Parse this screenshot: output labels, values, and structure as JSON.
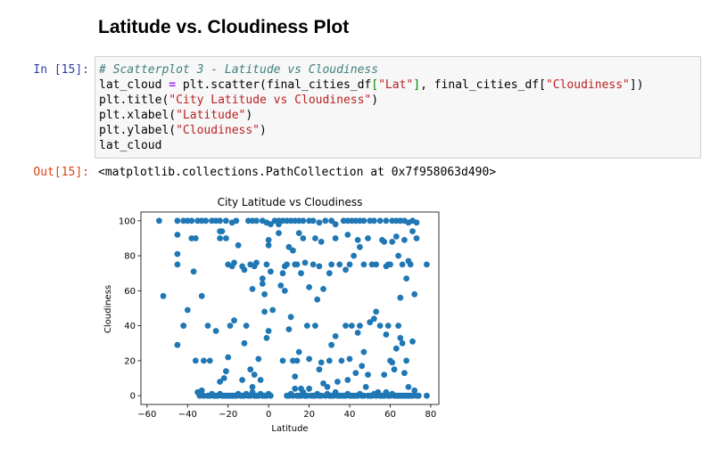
{
  "notebook": {
    "heading": "Latitude vs. Cloudiness Plot",
    "in_prompt": "In [15]:",
    "out_prompt": "Out[15]:",
    "code": {
      "line1_comment": "# Scatterplot 3 - Latitude vs Cloudiness",
      "line2": {
        "a": "lat_cloud ",
        "op": "=",
        "b": " plt.scatter(final_cities_df",
        "br1": "[",
        "s1": "\"Lat\"",
        "br2": "]",
        "c": ", final_cities_df[",
        "s2": "\"Cloudiness\"",
        "d": "])"
      },
      "line3": {
        "a": "plt.title(",
        "s": "\"City Latitude vs Cloudiness\"",
        "b": ")"
      },
      "line4": {
        "a": "plt.xlabel(",
        "s": "\"Latitude\"",
        "b": ")"
      },
      "line5": {
        "a": "plt.ylabel(",
        "s": "\"Cloudiness\"",
        "b": ")"
      },
      "line6": "lat_cloud"
    },
    "output": "<matplotlib.collections.PathCollection at 0x7f958063d490>"
  },
  "colors": {
    "marker": "#1f77b4",
    "in_prompt": "#303f9f",
    "out_prompt": "#d84315"
  },
  "chart_data": {
    "type": "scatter",
    "title": "City Latitude vs Cloudiness",
    "xlabel": "Latitude",
    "ylabel": "Cloudiness",
    "xlim": [
      -63,
      84
    ],
    "ylim": [
      -5,
      105
    ],
    "xticks": [
      -60,
      -40,
      -20,
      0,
      20,
      40,
      60,
      80
    ],
    "yticks": [
      0,
      20,
      40,
      60,
      80,
      100
    ],
    "xtick_labels": [
      "−60",
      "−40",
      "−20",
      "0",
      "20",
      "40",
      "60",
      "80"
    ],
    "ytick_labels": [
      "0",
      "20",
      "40",
      "60",
      "80",
      "100"
    ],
    "grid": false,
    "points": [
      [
        -54,
        100
      ],
      [
        -45,
        100
      ],
      [
        -42,
        100
      ],
      [
        -40,
        100
      ],
      [
        -38,
        100
      ],
      [
        -35,
        100
      ],
      [
        -33,
        100
      ],
      [
        -31,
        100
      ],
      [
        -28,
        100
      ],
      [
        -26,
        100
      ],
      [
        -24,
        100
      ],
      [
        -21,
        100
      ],
      [
        -18,
        99
      ],
      [
        -16,
        100
      ],
      [
        -10,
        100
      ],
      [
        -8,
        100
      ],
      [
        -6,
        100
      ],
      [
        -3,
        100
      ],
      [
        -1,
        99
      ],
      [
        1,
        98
      ],
      [
        3,
        100
      ],
      [
        5,
        100
      ],
      [
        7,
        100
      ],
      [
        9,
        100
      ],
      [
        11,
        100
      ],
      [
        13,
        100
      ],
      [
        15,
        100
      ],
      [
        17,
        100
      ],
      [
        20,
        100
      ],
      [
        22,
        100
      ],
      [
        25,
        99
      ],
      [
        28,
        100
      ],
      [
        31,
        100
      ],
      [
        33,
        98
      ],
      [
        37,
        100
      ],
      [
        39,
        100
      ],
      [
        41,
        100
      ],
      [
        43,
        100
      ],
      [
        45,
        100
      ],
      [
        47,
        100
      ],
      [
        50,
        100
      ],
      [
        52,
        100
      ],
      [
        55,
        100
      ],
      [
        58,
        100
      ],
      [
        61,
        100
      ],
      [
        63,
        100
      ],
      [
        65,
        100
      ],
      [
        67,
        100
      ],
      [
        69,
        99
      ],
      [
        71,
        100
      ],
      [
        73,
        99
      ],
      [
        -52,
        57
      ],
      [
        -45,
        92
      ],
      [
        -45,
        81
      ],
      [
        -45,
        75
      ],
      [
        -42,
        40
      ],
      [
        -40,
        49
      ],
      [
        -38,
        90
      ],
      [
        -37,
        71
      ],
      [
        -36,
        90
      ],
      [
        -33,
        57
      ],
      [
        -24,
        94
      ],
      [
        -24,
        90
      ],
      [
        -23,
        94
      ],
      [
        -21,
        90
      ],
      [
        -20,
        75
      ],
      [
        -18,
        74
      ],
      [
        -17,
        76
      ],
      [
        -15,
        86
      ],
      [
        -13,
        74
      ],
      [
        -12,
        72
      ],
      [
        -9,
        75
      ],
      [
        -8,
        61
      ],
      [
        -7,
        74
      ],
      [
        -6,
        76
      ],
      [
        -3,
        67
      ],
      [
        -3,
        64
      ],
      [
        -2,
        58
      ],
      [
        -2,
        48
      ],
      [
        -1,
        75
      ],
      [
        0,
        86
      ],
      [
        0,
        89
      ],
      [
        1,
        71
      ],
      [
        2,
        49
      ],
      [
        5,
        98
      ],
      [
        5,
        93
      ],
      [
        6,
        63
      ],
      [
        7,
        70
      ],
      [
        8,
        74
      ],
      [
        8,
        60
      ],
      [
        9,
        75
      ],
      [
        10,
        85
      ],
      [
        12,
        83
      ],
      [
        13,
        75
      ],
      [
        14,
        75
      ],
      [
        15,
        93
      ],
      [
        16,
        70
      ],
      [
        17,
        90
      ],
      [
        18,
        76
      ],
      [
        20,
        62
      ],
      [
        22,
        75
      ],
      [
        23,
        90
      ],
      [
        24,
        55
      ],
      [
        25,
        74
      ],
      [
        26,
        88
      ],
      [
        27,
        61
      ],
      [
        30,
        70
      ],
      [
        31,
        75
      ],
      [
        33,
        90
      ],
      [
        35,
        75
      ],
      [
        38,
        72
      ],
      [
        39,
        92
      ],
      [
        40,
        75
      ],
      [
        42,
        80
      ],
      [
        44,
        89
      ],
      [
        45,
        85
      ],
      [
        47,
        75
      ],
      [
        49,
        90
      ],
      [
        51,
        75
      ],
      [
        53,
        75
      ],
      [
        56,
        89
      ],
      [
        57,
        88
      ],
      [
        58,
        74
      ],
      [
        59,
        75
      ],
      [
        60,
        75
      ],
      [
        61,
        88
      ],
      [
        63,
        91
      ],
      [
        64,
        80
      ],
      [
        65,
        56
      ],
      [
        66,
        75
      ],
      [
        67,
        89
      ],
      [
        68,
        67
      ],
      [
        69,
        77
      ],
      [
        70,
        75
      ],
      [
        71,
        94
      ],
      [
        72,
        58
      ],
      [
        73,
        90
      ],
      [
        78,
        75
      ],
      [
        -45,
        29
      ],
      [
        -42,
        40
      ],
      [
        -36,
        20
      ],
      [
        -34,
        1
      ],
      [
        -32,
        20
      ],
      [
        -30,
        40
      ],
      [
        -29,
        20
      ],
      [
        -27,
        0
      ],
      [
        -26,
        37
      ],
      [
        -24,
        8
      ],
      [
        -22,
        10
      ],
      [
        -21,
        14
      ],
      [
        -20,
        22
      ],
      [
        -19,
        40
      ],
      [
        -17,
        43
      ],
      [
        -16,
        0
      ],
      [
        -13,
        9
      ],
      [
        -12,
        30
      ],
      [
        -11,
        40
      ],
      [
        -9,
        15
      ],
      [
        -8,
        5
      ],
      [
        -7,
        12
      ],
      [
        -5,
        21
      ],
      [
        -4,
        9
      ],
      [
        -3,
        0
      ],
      [
        -1,
        33
      ],
      [
        0,
        37
      ],
      [
        7,
        20
      ],
      [
        9,
        0
      ],
      [
        10,
        38
      ],
      [
        11,
        45
      ],
      [
        12,
        20
      ],
      [
        13,
        11
      ],
      [
        14,
        20
      ],
      [
        15,
        25
      ],
      [
        16,
        4
      ],
      [
        18,
        0
      ],
      [
        19,
        40
      ],
      [
        20,
        21
      ],
      [
        22,
        0
      ],
      [
        23,
        40
      ],
      [
        25,
        15
      ],
      [
        26,
        19
      ],
      [
        27,
        7
      ],
      [
        29,
        5
      ],
      [
        30,
        20
      ],
      [
        31,
        29
      ],
      [
        33,
        34
      ],
      [
        34,
        8
      ],
      [
        36,
        20
      ],
      [
        37,
        0
      ],
      [
        38,
        40
      ],
      [
        39,
        9
      ],
      [
        40,
        21
      ],
      [
        41,
        40
      ],
      [
        43,
        13
      ],
      [
        44,
        36
      ],
      [
        45,
        40
      ],
      [
        46,
        17
      ],
      [
        47,
        25
      ],
      [
        48,
        5
      ],
      [
        49,
        12
      ],
      [
        50,
        42
      ],
      [
        52,
        44
      ],
      [
        53,
        48
      ],
      [
        54,
        2
      ],
      [
        55,
        40
      ],
      [
        57,
        12
      ],
      [
        58,
        35
      ],
      [
        59,
        40
      ],
      [
        60,
        20
      ],
      [
        61,
        19
      ],
      [
        62,
        15
      ],
      [
        63,
        27
      ],
      [
        64,
        40
      ],
      [
        65,
        33
      ],
      [
        66,
        30
      ],
      [
        67,
        13
      ],
      [
        68,
        20
      ],
      [
        69,
        5
      ],
      [
        70,
        0
      ],
      [
        71,
        31
      ],
      [
        72,
        3
      ],
      [
        74,
        0
      ],
      [
        78,
        0
      ],
      [
        -35,
        2
      ],
      [
        -34,
        0
      ],
      [
        -33,
        3
      ],
      [
        -32,
        0
      ],
      [
        -30,
        0
      ],
      [
        -29,
        0
      ],
      [
        -28,
        1
      ],
      [
        -27,
        0
      ],
      [
        -26,
        0
      ],
      [
        -25,
        0
      ],
      [
        -24,
        1
      ],
      [
        -23,
        0
      ],
      [
        -22,
        0
      ],
      [
        -21,
        0
      ],
      [
        -20,
        0
      ],
      [
        -19,
        0
      ],
      [
        -18,
        0
      ],
      [
        -17,
        0
      ],
      [
        -16,
        0
      ],
      [
        -15,
        1
      ],
      [
        -14,
        0
      ],
      [
        -13,
        0
      ],
      [
        -12,
        0
      ],
      [
        -11,
        1
      ],
      [
        -10,
        0
      ],
      [
        -9,
        0
      ],
      [
        -8,
        2
      ],
      [
        -7,
        0
      ],
      [
        -6,
        0
      ],
      [
        -5,
        0
      ],
      [
        -4,
        1
      ],
      [
        -2,
        0
      ],
      [
        -1,
        0
      ],
      [
        0,
        1
      ],
      [
        1,
        0
      ],
      [
        10,
        0
      ],
      [
        11,
        1
      ],
      [
        12,
        0
      ],
      [
        13,
        4
      ],
      [
        14,
        0
      ],
      [
        15,
        0
      ],
      [
        16,
        0
      ],
      [
        17,
        2
      ],
      [
        18,
        0
      ],
      [
        19,
        0
      ],
      [
        20,
        4
      ],
      [
        21,
        0
      ],
      [
        23,
        0
      ],
      [
        24,
        1
      ],
      [
        25,
        0
      ],
      [
        26,
        0
      ],
      [
        28,
        0
      ],
      [
        29,
        1
      ],
      [
        30,
        0
      ],
      [
        31,
        0
      ],
      [
        32,
        0
      ],
      [
        33,
        2
      ],
      [
        34,
        0
      ],
      [
        35,
        0
      ],
      [
        36,
        0
      ],
      [
        38,
        0
      ],
      [
        39,
        1
      ],
      [
        40,
        0
      ],
      [
        41,
        0
      ],
      [
        42,
        0
      ],
      [
        43,
        0
      ],
      [
        44,
        0
      ],
      [
        45,
        1
      ],
      [
        46,
        0
      ],
      [
        47,
        0
      ],
      [
        49,
        0
      ],
      [
        50,
        0
      ],
      [
        51,
        0
      ],
      [
        52,
        1
      ],
      [
        53,
        0
      ],
      [
        55,
        0
      ],
      [
        56,
        0
      ],
      [
        57,
        0
      ],
      [
        58,
        2
      ],
      [
        59,
        0
      ],
      [
        60,
        0
      ],
      [
        61,
        1
      ],
      [
        62,
        0
      ],
      [
        63,
        0
      ],
      [
        64,
        0
      ],
      [
        65,
        0
      ],
      [
        66,
        0
      ],
      [
        67,
        0
      ],
      [
        68,
        0
      ],
      [
        69,
        0
      ],
      [
        71,
        0
      ],
      [
        73,
        0
      ]
    ]
  }
}
